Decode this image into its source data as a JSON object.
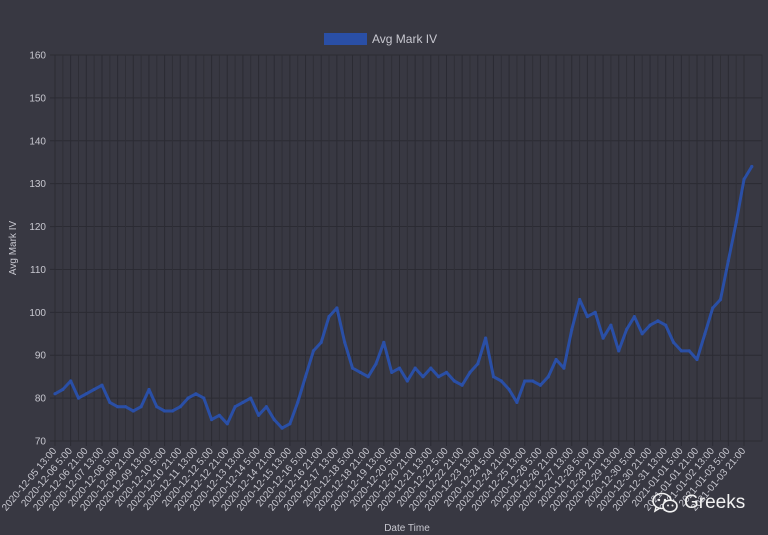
{
  "chart_data": {
    "type": "line",
    "title": "",
    "xlabel": "Date Time",
    "ylabel": "Avg Mark IV",
    "ylim": [
      70,
      160
    ],
    "yticks": [
      70,
      80,
      90,
      100,
      110,
      120,
      130,
      140,
      150,
      160
    ],
    "grid": true,
    "legend_position": "top",
    "x_tick_labels": [
      "2020-12-05 13:00",
      "2020-12-06 5:00",
      "2020-12-06 21:00",
      "2020-12-07 13:00",
      "2020-12-08 5:00",
      "2020-12-08 21:00",
      "2020-12-09 13:00",
      "2020-12-10 5:00",
      "2020-12-10 21:00",
      "2020-12-11 13:00",
      "2020-12-12 5:00",
      "2020-12-12 21:00",
      "2020-12-13 13:00",
      "2020-12-14 5:00",
      "2020-12-14 21:00",
      "2020-12-15 13:00",
      "2020-12-16 5:00",
      "2020-12-16 21:00",
      "2020-12-17 13:00",
      "2020-12-18 5:00",
      "2020-12-18 21:00",
      "2020-12-19 13:00",
      "2020-12-20 5:00",
      "2020-12-20 21:00",
      "2020-12-21 13:00",
      "2020-12-22 5:00",
      "2020-12-22 21:00",
      "2020-12-23 13:00",
      "2020-12-24 5:00",
      "2020-12-24 21:00",
      "2020-12-25 13:00",
      "2020-12-26 5:00",
      "2020-12-26 21:00",
      "2020-12-27 13:00",
      "2020-12-28 5:00",
      "2020-12-28 21:00",
      "2020-12-29 13:00",
      "2020-12-30 5:00",
      "2020-12-30 21:00",
      "2020-12-31 13:00",
      "2021-01-01 5:00",
      "2021-01-01 21:00",
      "2021-01-02 13:00",
      "2021-01-03 5:00",
      "2021-01-03 21:00"
    ],
    "series": [
      {
        "name": "Avg Mark IV",
        "color": "#2a4fa6",
        "x": [
          "2020-12-05 13:00",
          "2020-12-05 21:00",
          "2020-12-06 5:00",
          "2020-12-06 13:00",
          "2020-12-06 21:00",
          "2020-12-07 5:00",
          "2020-12-07 13:00",
          "2020-12-07 21:00",
          "2020-12-08 5:00",
          "2020-12-08 13:00",
          "2020-12-08 21:00",
          "2020-12-09 5:00",
          "2020-12-09 13:00",
          "2020-12-09 21:00",
          "2020-12-10 5:00",
          "2020-12-10 13:00",
          "2020-12-10 21:00",
          "2020-12-11 5:00",
          "2020-12-11 13:00",
          "2020-12-11 21:00",
          "2020-12-12 5:00",
          "2020-12-12 13:00",
          "2020-12-12 21:00",
          "2020-12-13 5:00",
          "2020-12-13 13:00",
          "2020-12-13 21:00",
          "2020-12-14 5:00",
          "2020-12-14 13:00",
          "2020-12-14 21:00",
          "2020-12-15 5:00",
          "2020-12-15 13:00",
          "2020-12-15 21:00",
          "2020-12-16 5:00",
          "2020-12-16 13:00",
          "2020-12-16 21:00",
          "2020-12-17 5:00",
          "2020-12-17 13:00",
          "2020-12-17 21:00",
          "2020-12-18 5:00",
          "2020-12-18 13:00",
          "2020-12-18 21:00",
          "2020-12-19 5:00",
          "2020-12-19 13:00",
          "2020-12-19 21:00",
          "2020-12-20 5:00",
          "2020-12-20 13:00",
          "2020-12-20 21:00",
          "2020-12-21 5:00",
          "2020-12-21 13:00",
          "2020-12-21 21:00",
          "2020-12-22 5:00",
          "2020-12-22 13:00",
          "2020-12-22 21:00",
          "2020-12-23 5:00",
          "2020-12-23 13:00",
          "2020-12-23 21:00",
          "2020-12-24 5:00",
          "2020-12-24 13:00",
          "2020-12-24 21:00",
          "2020-12-25 5:00",
          "2020-12-25 13:00",
          "2020-12-25 21:00",
          "2020-12-26 5:00",
          "2020-12-26 13:00",
          "2020-12-26 21:00",
          "2020-12-27 5:00",
          "2020-12-27 13:00",
          "2020-12-27 21:00",
          "2020-12-28 5:00",
          "2020-12-28 13:00",
          "2020-12-28 21:00",
          "2020-12-29 5:00",
          "2020-12-29 13:00",
          "2020-12-29 21:00",
          "2020-12-30 5:00",
          "2020-12-30 13:00",
          "2020-12-30 21:00",
          "2020-12-31 5:00",
          "2020-12-31 13:00",
          "2020-12-31 21:00",
          "2021-01-01 5:00",
          "2021-01-01 13:00",
          "2021-01-01 21:00",
          "2021-01-02 5:00",
          "2021-01-02 13:00",
          "2021-01-02 21:00",
          "2021-01-03 5:00",
          "2021-01-03 13:00",
          "2021-01-03 21:00",
          "2021-01-04 5:00"
        ],
        "values": [
          81,
          82,
          84,
          80,
          81,
          82,
          83,
          79,
          78,
          78,
          77,
          78,
          82,
          78,
          77,
          77,
          78,
          80,
          81,
          80,
          75,
          76,
          74,
          78,
          79,
          80,
          76,
          78,
          75,
          73,
          74,
          79,
          85,
          91,
          93,
          99,
          101,
          93,
          87,
          86,
          85,
          88,
          93,
          86,
          87,
          84,
          87,
          85,
          87,
          85,
          86,
          84,
          83,
          86,
          88,
          94,
          85,
          84,
          82,
          79,
          84,
          84,
          83,
          85,
          89,
          87,
          96,
          103,
          99,
          100,
          94,
          97,
          91,
          96,
          99,
          95,
          97,
          98,
          97,
          93,
          91,
          91,
          89,
          95,
          101,
          103,
          112,
          121,
          131,
          134
        ]
      }
    ]
  },
  "watermark": {
    "text": "Greeks",
    "icon": "wechat-icon"
  }
}
